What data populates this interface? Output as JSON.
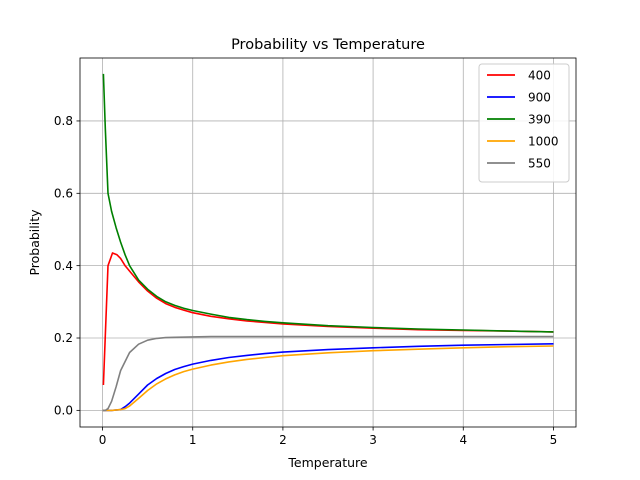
{
  "chart_data": {
    "type": "line",
    "title": "Probability vs Temperature",
    "xlabel": "Temperature",
    "ylabel": "Probability",
    "xlim": [
      -0.25,
      5.25
    ],
    "ylim": [
      -0.046,
      0.974
    ],
    "xticks": [
      0,
      1,
      2,
      3,
      4,
      5
    ],
    "xtick_labels": [
      "0",
      "1",
      "2",
      "3",
      "4",
      "5"
    ],
    "yticks": [
      0.0,
      0.2,
      0.4,
      0.6,
      0.8
    ],
    "ytick_labels": [
      "0.0",
      "0.2",
      "0.4",
      "0.6",
      "0.8"
    ],
    "grid": true,
    "legend_position": "top-right",
    "series": [
      {
        "name": "400",
        "color": "#ff0000",
        "x": [
          0.01,
          0.06,
          0.11,
          0.16,
          0.2,
          0.25,
          0.3,
          0.4,
          0.5,
          0.6,
          0.7,
          0.8,
          0.9,
          1.0,
          1.2,
          1.4,
          1.6,
          1.8,
          2.0,
          2.5,
          3.0,
          3.5,
          4.0,
          4.5,
          5.0
        ],
        "y": [
          0.07,
          0.4,
          0.435,
          0.43,
          0.42,
          0.4,
          0.385,
          0.355,
          0.33,
          0.31,
          0.295,
          0.285,
          0.277,
          0.27,
          0.26,
          0.253,
          0.247,
          0.243,
          0.239,
          0.232,
          0.227,
          0.223,
          0.221,
          0.219,
          0.217
        ]
      },
      {
        "name": "900",
        "color": "#0000ff",
        "x": [
          0.0,
          0.1,
          0.2,
          0.25,
          0.3,
          0.4,
          0.5,
          0.6,
          0.7,
          0.8,
          0.9,
          1.0,
          1.2,
          1.4,
          1.6,
          1.8,
          2.0,
          2.5,
          3.0,
          3.5,
          4.0,
          4.5,
          5.0
        ],
        "y": [
          0.0,
          0.0,
          0.002,
          0.01,
          0.02,
          0.045,
          0.07,
          0.088,
          0.102,
          0.113,
          0.121,
          0.128,
          0.138,
          0.146,
          0.152,
          0.157,
          0.161,
          0.168,
          0.173,
          0.177,
          0.18,
          0.182,
          0.184
        ]
      },
      {
        "name": "390",
        "color": "#008000",
        "x": [
          0.01,
          0.03,
          0.06,
          0.1,
          0.15,
          0.2,
          0.25,
          0.3,
          0.4,
          0.5,
          0.6,
          0.7,
          0.8,
          0.9,
          1.0,
          1.2,
          1.4,
          1.6,
          1.8,
          2.0,
          2.5,
          3.0,
          3.5,
          4.0,
          4.5,
          5.0
        ],
        "y": [
          0.93,
          0.78,
          0.6,
          0.55,
          0.505,
          0.465,
          0.43,
          0.4,
          0.36,
          0.335,
          0.315,
          0.3,
          0.29,
          0.282,
          0.276,
          0.266,
          0.257,
          0.251,
          0.246,
          0.242,
          0.234,
          0.229,
          0.225,
          0.222,
          0.219,
          0.217
        ]
      },
      {
        "name": "1000",
        "color": "#ffa500",
        "x": [
          0.0,
          0.1,
          0.2,
          0.25,
          0.3,
          0.4,
          0.5,
          0.6,
          0.7,
          0.8,
          0.9,
          1.0,
          1.2,
          1.4,
          1.6,
          1.8,
          2.0,
          2.5,
          3.0,
          3.5,
          4.0,
          4.5,
          5.0
        ],
        "y": [
          0.0,
          0.0,
          0.002,
          0.005,
          0.012,
          0.033,
          0.055,
          0.073,
          0.087,
          0.098,
          0.107,
          0.114,
          0.125,
          0.134,
          0.141,
          0.146,
          0.151,
          0.159,
          0.165,
          0.169,
          0.173,
          0.176,
          0.178
        ]
      },
      {
        "name": "550",
        "color": "#808080",
        "x": [
          0.0,
          0.03,
          0.06,
          0.1,
          0.15,
          0.2,
          0.3,
          0.4,
          0.5,
          0.6,
          0.7,
          0.8,
          1.0,
          1.2,
          1.5,
          2.0,
          3.0,
          4.0,
          5.0
        ],
        "y": [
          0.0,
          0.0,
          0.005,
          0.025,
          0.065,
          0.11,
          0.16,
          0.183,
          0.194,
          0.199,
          0.201,
          0.202,
          0.203,
          0.204,
          0.204,
          0.204,
          0.204,
          0.204,
          0.204
        ]
      }
    ]
  }
}
